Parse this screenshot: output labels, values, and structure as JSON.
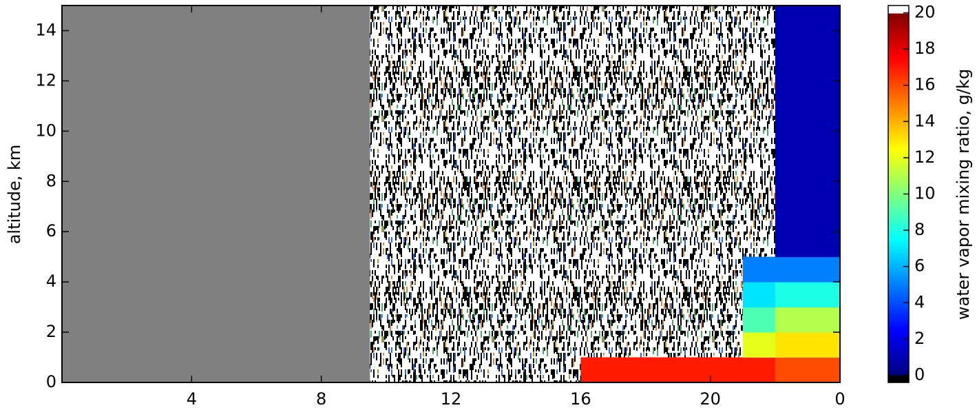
{
  "chart_data": {
    "type": "heatmap",
    "ylabel": "altitude, km",
    "colorbar_label": "water vapor mixing ratio, g/kg",
    "xlim": [
      0,
      24
    ],
    "ylim": [
      0,
      15
    ],
    "xticks": [
      4,
      8,
      12,
      16,
      20,
      {
        "value": 24,
        "label": "0"
      }
    ],
    "yticks": [
      0,
      2,
      4,
      6,
      8,
      10,
      12,
      14
    ],
    "clim": [
      -0.4,
      20.4
    ],
    "cticks": [
      0,
      2,
      4,
      6,
      8,
      10,
      12,
      14,
      16,
      18,
      20
    ],
    "colormap": "jet",
    "missing_color": "#808080",
    "noise_xlim": [
      9.5,
      24
    ],
    "x_bins": [
      0,
      1,
      2,
      3,
      4,
      5,
      6,
      7,
      8,
      9,
      10,
      11,
      12,
      13,
      14,
      15,
      16,
      17,
      18,
      19,
      20,
      21,
      22,
      23,
      24
    ],
    "y_bins": [
      0,
      1,
      2,
      3,
      4,
      5,
      6,
      7,
      8,
      9,
      10,
      11,
      12,
      13,
      14,
      15
    ],
    "z": [
      [
        null,
        null,
        null,
        null,
        null,
        null,
        null,
        null,
        null,
        null,
        null,
        null,
        null,
        null,
        null,
        null,
        17,
        17,
        17,
        17,
        17,
        17,
        16,
        16
      ],
      [
        null,
        null,
        null,
        null,
        null,
        null,
        null,
        null,
        null,
        null,
        null,
        null,
        null,
        null,
        null,
        null,
        null,
        null,
        null,
        null,
        null,
        12,
        13,
        13
      ],
      [
        null,
        null,
        null,
        null,
        null,
        null,
        null,
        null,
        null,
        null,
        null,
        null,
        null,
        null,
        null,
        null,
        null,
        null,
        null,
        null,
        null,
        9,
        11,
        11
      ],
      [
        null,
        null,
        null,
        null,
        null,
        null,
        null,
        null,
        null,
        null,
        null,
        null,
        null,
        null,
        null,
        null,
        null,
        null,
        null,
        null,
        null,
        7,
        8,
        8
      ],
      [
        null,
        null,
        null,
        null,
        null,
        null,
        null,
        null,
        null,
        null,
        null,
        null,
        null,
        null,
        null,
        null,
        null,
        null,
        null,
        null,
        null,
        5,
        5,
        5
      ],
      [
        null,
        null,
        null,
        null,
        null,
        null,
        null,
        null,
        null,
        null,
        null,
        null,
        null,
        null,
        null,
        null,
        null,
        null,
        null,
        null,
        null,
        null,
        1,
        1
      ],
      [
        null,
        null,
        null,
        null,
        null,
        null,
        null,
        null,
        null,
        null,
        null,
        null,
        null,
        null,
        null,
        null,
        null,
        null,
        null,
        null,
        null,
        null,
        1,
        1
      ],
      [
        null,
        null,
        null,
        null,
        null,
        null,
        null,
        null,
        null,
        null,
        null,
        null,
        null,
        null,
        null,
        null,
        null,
        null,
        null,
        null,
        null,
        null,
        1,
        1
      ],
      [
        null,
        null,
        null,
        null,
        null,
        null,
        null,
        null,
        null,
        null,
        null,
        null,
        null,
        null,
        null,
        null,
        null,
        null,
        null,
        null,
        null,
        null,
        1,
        1
      ],
      [
        null,
        null,
        null,
        null,
        null,
        null,
        null,
        null,
        null,
        null,
        null,
        null,
        null,
        null,
        null,
        null,
        null,
        null,
        null,
        null,
        null,
        null,
        1,
        1
      ],
      [
        null,
        null,
        null,
        null,
        null,
        null,
        null,
        null,
        null,
        null,
        null,
        null,
        null,
        null,
        null,
        null,
        null,
        null,
        null,
        null,
        null,
        null,
        1,
        1
      ],
      [
        null,
        null,
        null,
        null,
        null,
        null,
        null,
        null,
        null,
        null,
        null,
        null,
        null,
        null,
        null,
        null,
        null,
        null,
        null,
        null,
        null,
        null,
        1,
        1
      ],
      [
        null,
        null,
        null,
        null,
        null,
        null,
        null,
        null,
        null,
        null,
        null,
        null,
        null,
        null,
        null,
        null,
        null,
        null,
        null,
        null,
        null,
        null,
        1,
        1
      ],
      [
        null,
        null,
        null,
        null,
        null,
        null,
        null,
        null,
        null,
        null,
        null,
        null,
        null,
        null,
        null,
        null,
        null,
        null,
        null,
        null,
        null,
        null,
        1,
        1
      ],
      [
        null,
        null,
        null,
        null,
        null,
        null,
        null,
        null,
        null,
        null,
        null,
        null,
        null,
        null,
        null,
        null,
        null,
        null,
        null,
        null,
        null,
        null,
        1,
        1
      ]
    ]
  }
}
